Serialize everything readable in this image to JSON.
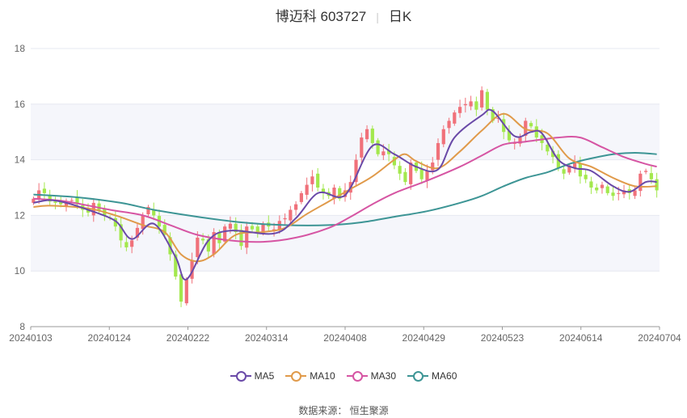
{
  "title": "博迈科 603727",
  "period": "日K",
  "source": "数据来源：  恒生聚源",
  "colors": {
    "up": "#f0717a",
    "down": "#a3e84d",
    "grid": "#e6e8f0",
    "band": "#f5f6fb",
    "axis": "#666"
  },
  "chart_data": {
    "type": "candlestick",
    "ylim": [
      8,
      18
    ],
    "yticks": [
      "8",
      "10",
      "12",
      "14",
      "16",
      "18"
    ],
    "xticks": [
      "20240103",
      "20240124",
      "20240222",
      "20240314",
      "20240408",
      "20240429",
      "20240523",
      "20240614",
      "20240704"
    ],
    "close": [
      12.6,
      12.9,
      12.8,
      12.5,
      12.45,
      12.4,
      12.5,
      12.55,
      12.4,
      12.2,
      12.1,
      12.45,
      12.2,
      12.0,
      11.9,
      11.6,
      11.1,
      10.85,
      11.1,
      11.55,
      12.0,
      12.3,
      12.0,
      11.6,
      11.3,
      10.6,
      9.8,
      8.9,
      9.7,
      10.4,
      11.2,
      11.1,
      10.7,
      11.4,
      11.0,
      11.6,
      11.7,
      11.4,
      10.9,
      11.6,
      11.5,
      11.4,
      11.7,
      11.6,
      11.5,
      11.8,
      11.9,
      12.2,
      12.4,
      12.8,
      13.1,
      13.4,
      13.0,
      12.8,
      12.7,
      13.0,
      12.6,
      12.9,
      13.2,
      14.0,
      14.8,
      15.1,
      14.6,
      14.2,
      14.3,
      14.2,
      13.8,
      13.5,
      13.2,
      13.9,
      13.6,
      13.3,
      13.6,
      13.9,
      14.6,
      15.1,
      15.4,
      15.7,
      15.9,
      16.0,
      16.1,
      15.8,
      16.5,
      15.8,
      15.4,
      15.5,
      15.0,
      14.7,
      14.6,
      14.8,
      15.4,
      15.2,
      14.8,
      14.6,
      14.3,
      14.1,
      13.7,
      13.5,
      13.8,
      13.9,
      13.4,
      13.3,
      13.0,
      12.9,
      13.1,
      12.8,
      12.7,
      12.8,
      12.9,
      12.8,
      12.9,
      13.5,
      13.6,
      13.3,
      12.9
    ],
    "ma5_anchors": [
      [
        0,
        12.45
      ],
      [
        3,
        12.55
      ],
      [
        6,
        12.45
      ],
      [
        10,
        12.2
      ],
      [
        15,
        11.8
      ],
      [
        18,
        11.15
      ],
      [
        22,
        11.7
      ],
      [
        26,
        10.5
      ],
      [
        28,
        9.7
      ],
      [
        32,
        11.1
      ],
      [
        36,
        11.45
      ],
      [
        44,
        11.35
      ],
      [
        48,
        11.9
      ],
      [
        52,
        12.8
      ],
      [
        56,
        12.65
      ],
      [
        58,
        13.0
      ],
      [
        62,
        14.5
      ],
      [
        66,
        14.2
      ],
      [
        70,
        13.75
      ],
      [
        74,
        13.65
      ],
      [
        77,
        14.8
      ],
      [
        82,
        15.6
      ],
      [
        84,
        15.75
      ],
      [
        88,
        14.85
      ],
      [
        91,
        15.0
      ],
      [
        93,
        14.95
      ],
      [
        96,
        14.0
      ],
      [
        99,
        13.7
      ],
      [
        102,
        13.6
      ],
      [
        106,
        13.05
      ],
      [
        109,
        12.85
      ],
      [
        112,
        13.2
      ],
      [
        114,
        13.2
      ]
    ],
    "ma10_anchors": [
      [
        0,
        12.3
      ],
      [
        3,
        12.35
      ],
      [
        10,
        12.25
      ],
      [
        15,
        12.0
      ],
      [
        20,
        11.65
      ],
      [
        24,
        11.4
      ],
      [
        27,
        10.6
      ],
      [
        30,
        10.35
      ],
      [
        33,
        10.6
      ],
      [
        37,
        11.3
      ],
      [
        42,
        11.4
      ],
      [
        46,
        11.55
      ],
      [
        50,
        12.05
      ],
      [
        54,
        12.5
      ],
      [
        58,
        12.95
      ],
      [
        62,
        13.4
      ],
      [
        66,
        14.0
      ],
      [
        68,
        14.2
      ],
      [
        70,
        13.95
      ],
      [
        74,
        13.7
      ],
      [
        78,
        14.3
      ],
      [
        82,
        15.05
      ],
      [
        86,
        15.65
      ],
      [
        90,
        15.1
      ],
      [
        94,
        14.95
      ],
      [
        98,
        14.05
      ],
      [
        102,
        13.75
      ],
      [
        106,
        13.35
      ],
      [
        110,
        13.05
      ],
      [
        114,
        13.05
      ]
    ],
    "ma30_anchors": [
      [
        0,
        12.6
      ],
      [
        6,
        12.5
      ],
      [
        14,
        12.2
      ],
      [
        20,
        12.0
      ],
      [
        25,
        11.65
      ],
      [
        30,
        11.3
      ],
      [
        36,
        11.1
      ],
      [
        42,
        11.05
      ],
      [
        48,
        11.2
      ],
      [
        54,
        11.55
      ],
      [
        58,
        11.95
      ],
      [
        62,
        12.4
      ],
      [
        66,
        12.8
      ],
      [
        72,
        13.25
      ],
      [
        78,
        13.75
      ],
      [
        82,
        14.15
      ],
      [
        86,
        14.55
      ],
      [
        90,
        14.65
      ],
      [
        96,
        14.8
      ],
      [
        100,
        14.8
      ],
      [
        104,
        14.45
      ],
      [
        108,
        14.1
      ],
      [
        112,
        13.85
      ],
      [
        114,
        13.75
      ]
    ],
    "ma60_anchors": [
      [
        0,
        12.75
      ],
      [
        8,
        12.65
      ],
      [
        16,
        12.45
      ],
      [
        22,
        12.2
      ],
      [
        30,
        11.95
      ],
      [
        38,
        11.75
      ],
      [
        46,
        11.65
      ],
      [
        54,
        11.65
      ],
      [
        60,
        11.75
      ],
      [
        66,
        11.95
      ],
      [
        72,
        12.15
      ],
      [
        78,
        12.45
      ],
      [
        82,
        12.7
      ],
      [
        86,
        13.05
      ],
      [
        90,
        13.35
      ],
      [
        94,
        13.55
      ],
      [
        98,
        13.85
      ],
      [
        102,
        14.05
      ],
      [
        106,
        14.2
      ],
      [
        110,
        14.25
      ],
      [
        114,
        14.2
      ]
    ],
    "series": [
      {
        "name": "MA5",
        "color": "#6a4aa8"
      },
      {
        "name": "MA10",
        "color": "#e09a4a"
      },
      {
        "name": "MA30",
        "color": "#d655a3"
      },
      {
        "name": "MA60",
        "color": "#3d9595"
      }
    ]
  }
}
